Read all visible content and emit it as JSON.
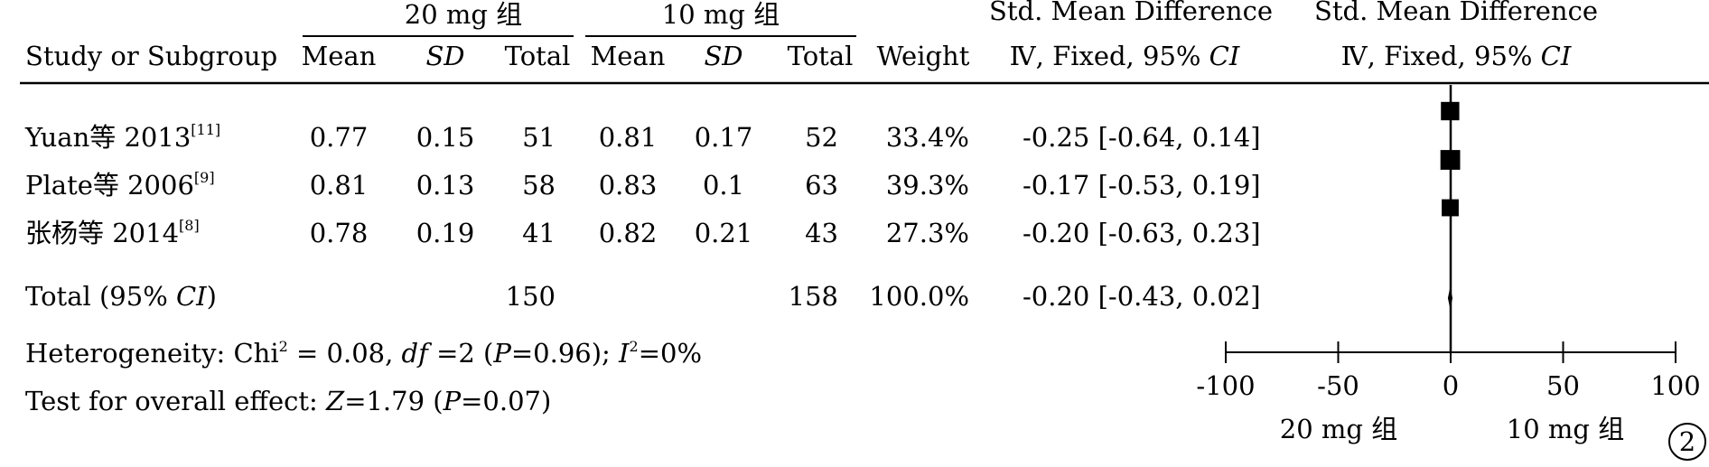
{
  "headers": {
    "group1": "20 mg 组",
    "group2": "10 mg 组",
    "study": "Study or Subgroup",
    "mean": "Mean",
    "sd": "SD",
    "total": "Total",
    "weight": "Weight",
    "smd_title": "Std. Mean Difference",
    "smd_method": "Ⅳ, Fixed, 95% CI",
    "plot_title": "Std. Mean Difference",
    "plot_method": "Ⅳ, Fixed, 95% CI"
  },
  "studies": [
    {
      "name": "Yuan等 2013",
      "ref": "[11]",
      "mean1": "0.77",
      "sd1": "0.15",
      "n1": "51",
      "mean2": "0.81",
      "sd2": "0.17",
      "n2": "52",
      "weight": "33.4%",
      "ci_text": "-0.25 [-0.64, 0.14]"
    },
    {
      "name": "Plate等 2006",
      "ref": "[9]",
      "mean1": "0.81",
      "sd1": "0.13",
      "n1": "58",
      "mean2": "0.83",
      "sd2": "0.1",
      "n2": "63",
      "weight": "39.3%",
      "ci_text": "-0.17 [-0.53, 0.19]"
    },
    {
      "name": "张杨等 2014",
      "ref": "[8]",
      "mean1": "0.78",
      "sd1": "0.19",
      "n1": "41",
      "mean2": "0.82",
      "sd2": "0.21",
      "n2": "43",
      "weight": "27.3%",
      "ci_text": "-0.20 [-0.63, 0.23]"
    }
  ],
  "total": {
    "label": "Total (95% CI)",
    "n1": "150",
    "n2": "158",
    "weight": "100.0%",
    "ci_text": "-0.20 [-0.43, 0.02]"
  },
  "heterogeneity": "Heterogeneity: Chi² = 0.08, df =2 (P=0.96); I²=0%",
  "overall_effect": "Test for overall effect: Z=1.79 (P=0.07)",
  "favours_left": "20 mg 组",
  "favours_right": "10 mg 组",
  "panel_label": "2",
  "chart_data": {
    "type": "forest",
    "x_range": [
      -100,
      100
    ],
    "x_ticks": [
      -100,
      -50,
      0,
      50,
      100
    ],
    "studies": [
      {
        "name": "Yuan等 2013",
        "smd": -0.25,
        "lo": -0.64,
        "hi": 0.14,
        "weight": 33.4
      },
      {
        "name": "Plate等 2006",
        "smd": -0.17,
        "lo": -0.53,
        "hi": 0.19,
        "weight": 39.3
      },
      {
        "name": "张杨等 2014",
        "smd": -0.2,
        "lo": -0.63,
        "hi": 0.23,
        "weight": 27.3
      }
    ],
    "pooled": {
      "smd": -0.2,
      "lo": -0.43,
      "hi": 0.02
    }
  }
}
